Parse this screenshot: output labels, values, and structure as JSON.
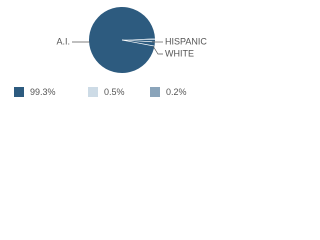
{
  "chart_data": {
    "type": "pie",
    "categories": [
      "A.I.",
      "HISPANIC",
      "WHITE"
    ],
    "values": [
      99.3,
      0.5,
      0.2
    ],
    "value_labels": [
      "99.3%",
      "0.5%",
      "0.2%"
    ],
    "colors": [
      "#2d5b7f",
      "#cddbe6",
      "#8aa4ba"
    ]
  }
}
